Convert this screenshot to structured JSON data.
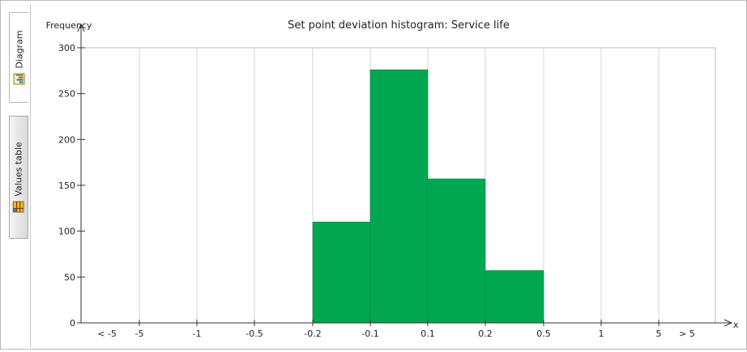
{
  "tabs": [
    {
      "label": "Diagram",
      "icon": "chart-icon",
      "active": true
    },
    {
      "label": "Values table",
      "icon": "table-icon",
      "active": false
    }
  ],
  "chart_data": {
    "type": "bar",
    "title": "Set point deviation histogram: Service life",
    "ylabel": "Frequency",
    "xlabel": "x",
    "categories": [
      "< -5",
      "-5",
      "-1",
      "-0.5",
      "-0.2",
      "-0.1",
      "0.1",
      "0.2",
      "0.5",
      "1",
      "5",
      "> 5"
    ],
    "bins": [
      {
        "from": "-0.2",
        "to": "-0.1",
        "value": 110
      },
      {
        "from": "-0.1",
        "to": "0.1",
        "value": 276
      },
      {
        "from": "0.1",
        "to": "0.2",
        "value": 157
      },
      {
        "from": "0.2",
        "to": "0.5",
        "value": 57
      }
    ],
    "yticks": [
      0,
      50,
      100,
      150,
      200,
      250,
      300
    ],
    "ylim": [
      0,
      300
    ],
    "grid": "vertical",
    "bar_color": "#00a650"
  }
}
